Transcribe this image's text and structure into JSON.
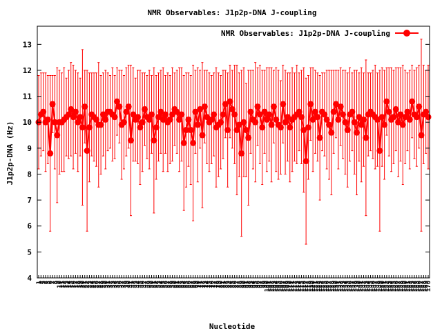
{
  "chart_data": {
    "type": "scatter",
    "title": "NMR Observables: J1p2p-DNA J-coupling",
    "xlabel": "Nucleotide",
    "ylabel": "J1p2p-DNA (Hz)",
    "ylim": [
      4,
      13.7
    ],
    "yticks": [
      4,
      5,
      6,
      7,
      8,
      9,
      10,
      11,
      12,
      13
    ],
    "grid": false,
    "legend": {
      "placement": "top-right",
      "entries": [
        "NMR Observables: J1p2p-DNA J-coupling"
      ]
    },
    "series_color": "#ff0000",
    "n_points": 170,
    "series": [
      {
        "name": "NMR Observables: J1p2p-DNA J-coupling",
        "values": [
          10.0,
          10.3,
          10.4,
          10.0,
          10.1,
          8.8,
          10.7,
          10.0,
          9.5,
          10.0,
          10.0,
          10.1,
          10.2,
          10.3,
          10.5,
          10.2,
          10.4,
          10.0,
          10.2,
          9.8,
          10.6,
          8.9,
          9.8,
          10.3,
          10.2,
          10.1,
          9.9,
          9.9,
          10.3,
          10.1,
          10.4,
          10.4,
          10.3,
          10.2,
          10.8,
          10.6,
          9.9,
          10.0,
          10.4,
          10.6,
          9.3,
          10.3,
          10.1,
          10.2,
          9.8,
          10.0,
          10.5,
          10.2,
          10.1,
          10.3,
          9.3,
          9.8,
          10.2,
          10.4,
          10.1,
          10.3,
          10.0,
          10.1,
          10.3,
          10.5,
          10.4,
          10.1,
          10.3,
          9.2,
          9.7,
          10.1,
          9.7,
          9.2,
          10.4,
          9.9,
          10.5,
          9.5,
          10.6,
          10.2,
          10.0,
          10.1,
          10.3,
          9.8,
          9.9,
          10.0,
          10.3,
          10.7,
          9.7,
          10.8,
          10.5,
          10.3,
          9.7,
          9.9,
          8.8,
          10.0,
          9.7,
          9.4,
          10.4,
          10.1,
          10.0,
          10.6,
          10.3,
          9.8,
          10.4,
          10.1,
          10.3,
          9.9,
          10.6,
          10.1,
          9.9,
          9.8,
          10.7,
          10.0,
          10.2,
          9.8,
          10.1,
          10.2,
          10.3,
          10.4,
          10.2,
          9.7,
          8.5,
          9.8,
          10.7,
          10.1,
          10.4,
          10.2,
          9.4,
          10.4,
          10.3,
          10.1,
          9.9,
          9.6,
          10.4,
          10.7,
          10.1,
          10.6,
          10.3,
          10.0,
          9.7,
          10.3,
          10.4,
          10.0,
          9.6,
          10.2,
          9.9,
          10.1,
          9.4,
          10.3,
          10.4,
          10.3,
          10.2,
          10.1,
          8.9,
          10.2,
          9.9,
          10.8,
          10.4,
          10.1,
          10.2,
          10.5,
          10.0,
          10.3,
          9.9,
          10.2,
          10.4,
          10.1,
          10.8,
          10.3,
          10.2,
          10.6,
          9.5,
          10.3,
          10.4,
          10.2
        ],
        "errors": [
          1.8,
          1.6,
          1.5,
          1.9,
          1.7,
          3.0,
          1.1,
          1.8,
          2.6,
          2.0,
          1.9,
          2.0,
          1.5,
          1.7,
          1.8,
          2.0,
          1.6,
          1.9,
          1.5,
          3.0,
          1.4,
          3.1,
          2.1,
          1.6,
          1.7,
          1.8,
          2.4,
          1.9,
          1.6,
          1.9,
          1.5,
          1.4,
          1.8,
          1.6,
          1.3,
          1.4,
          2.1,
          1.8,
          1.7,
          1.6,
          2.9,
          1.8,
          1.6,
          1.8,
          2.2,
          1.9,
          1.4,
          1.6,
          1.9,
          1.5,
          2.8,
          2.0,
          1.7,
          1.6,
          2.0,
          1.5,
          1.9,
          1.7,
          1.8,
          1.4,
          1.6,
          2.0,
          1.8,
          2.6,
          2.2,
          1.8,
          2.1,
          3.0,
          1.6,
          2.2,
          1.5,
          2.8,
          1.4,
          1.8,
          1.9,
          1.7,
          1.6,
          2.3,
          2.0,
          1.8,
          1.7,
          1.3,
          2.2,
          1.4,
          1.5,
          1.9,
          2.5,
          2.0,
          3.2,
          2.1,
          1.8,
          2.6,
          1.6,
          1.9,
          2.3,
          1.5,
          1.9,
          2.2,
          1.6,
          2.0,
          1.8,
          2.2,
          1.4,
          2.0,
          2.1,
          1.8,
          1.5,
          2.0,
          1.7,
          2.1,
          2.0,
          1.7,
          1.9,
          1.5,
          1.8,
          2.4,
          3.2,
          2.0,
          1.4,
          2.0,
          1.6,
          1.7,
          2.4,
          1.5,
          1.6,
          1.9,
          2.1,
          2.4,
          1.6,
          1.3,
          1.9,
          1.5,
          1.7,
          2.0,
          2.2,
          1.8,
          1.5,
          2.0,
          2.4,
          1.7,
          2.2,
          1.8,
          3.0,
          1.6,
          1.5,
          1.7,
          2.0,
          1.8,
          3.1,
          1.9,
          2.1,
          1.3,
          1.7,
          2.0,
          1.8,
          1.6,
          2.1,
          1.8,
          2.3,
          1.8,
          1.5,
          1.9,
          1.4,
          1.7,
          1.9,
          1.6,
          3.7,
          1.9,
          1.6,
          2.0
        ]
      }
    ]
  }
}
